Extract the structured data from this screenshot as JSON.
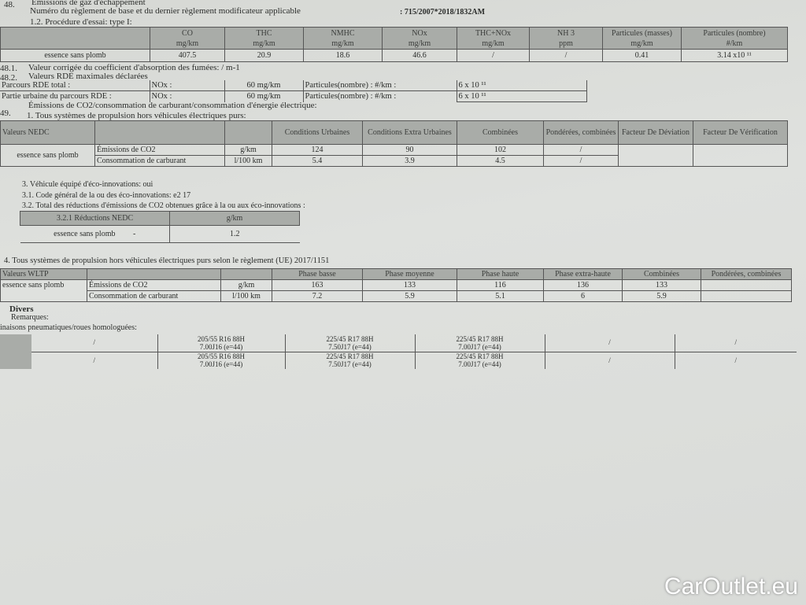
{
  "header": {
    "s48": "48.",
    "s48_title": "Émissions de gaz d'échappement",
    "reg_label": "Numéro du règlement de base et du dernier règlement modificateur applicable",
    "reg_value": ": 715/2007*2018/1832AM",
    "proc": "1.2. Procédure d'essai: type I:"
  },
  "emissions": {
    "headers": [
      [
        "CO",
        "mg/km"
      ],
      [
        "THC",
        "mg/km"
      ],
      [
        "NMHC",
        "mg/km"
      ],
      [
        "NOx",
        "mg/km"
      ],
      [
        "THC+NOx",
        "mg/km"
      ],
      [
        "NH 3",
        "ppm"
      ],
      [
        "Particules (masses)",
        "mg/km"
      ],
      [
        "Particules (nombre)",
        "#/km"
      ]
    ],
    "fuel": "essence sans plomb",
    "values": [
      "407.5",
      "20.9",
      "18.6",
      "46.6",
      "/",
      "/",
      "0.41",
      "3.14 x10 ¹¹"
    ]
  },
  "s48_1": {
    "num": "48.1.",
    "text": "Valeur corrigée du coefficient d'absorption des fumées: / m-1"
  },
  "s48_2": {
    "num": "48.2.",
    "text": "Valeurs RDE maximales déclarées",
    "rows": [
      {
        "label": "Parcours RDE total :",
        "nox": "NOx :",
        "nox_val": "60 mg/km",
        "pn": "Particules(nombre) : #/km :",
        "pn_val": "6 x 10 ¹¹"
      },
      {
        "label": "Partie urbaine du parcours RDE   :",
        "nox": "NOx :",
        "nox_val": "60 mg/km",
        "pn": "Particules(nombre) : #/km :",
        "pn_val": "6 x 10 ¹¹"
      }
    ]
  },
  "s49": {
    "num": "49.",
    "text": "Émissions de CO2/consommation de carburant/consommation d'énergie électrique:",
    "sub1": "1. Tous systèmes de propulsion hors véhicules électriques purs:"
  },
  "nedc": {
    "title": "Valeurs NEDC",
    "headers": [
      "Conditions Urbaines",
      "Conditions Extra Urbaines",
      "Combinées",
      "Pondérées, combinées",
      "Facteur De Déviation",
      "Facteur De Vérification"
    ],
    "fuel": "essence sans plomb",
    "rows": [
      {
        "label": "Émissions de CO2",
        "unit": "g/km",
        "values": [
          "124",
          "90",
          "102",
          "/"
        ]
      },
      {
        "label": "Consommation de carburant",
        "unit": "l/100 km",
        "values": [
          "5.4",
          "3.9",
          "4.5",
          "/"
        ]
      }
    ]
  },
  "eco": {
    "l3": "3. Véhicule équipé d'éco-innovations: oui",
    "l31": "3.1. Code général de la ou des éco-innovations: e2 17",
    "l32": "3.2. Total des réductions d'émissions de CO2 obtenues grâce à la ou aux éco-innovations :",
    "table_head": "3.2.1 Réductions NEDC",
    "table_unit": "g/km",
    "fuel": "essence sans plomb",
    "dash": "-",
    "value": "1.2"
  },
  "wltp": {
    "intro": "4. Tous systèmes de propulsion hors véhicules électriques purs selon le règlement (UE) 2017/1151",
    "title": "Valeurs WLTP",
    "headers": [
      "Phase basse",
      "Phase moyenne",
      "Phase haute",
      "Phase extra-haute",
      "Combinées",
      "Pondérées, combinées"
    ],
    "fuel": "essence sans plomb",
    "rows": [
      {
        "label": "Émissions de CO2",
        "unit": "g/km",
        "values": [
          "163",
          "133",
          "116",
          "136",
          "133",
          ""
        ]
      },
      {
        "label": "Consommation de carburant",
        "unit": "l/100 km",
        "values": [
          "7.2",
          "5.9",
          "5.1",
          "6",
          "5.9",
          ""
        ]
      }
    ]
  },
  "divers": {
    "title": "Divers",
    "remarks": "Remarques:",
    "tyres_label": "inaisons pneumatiques/roues homologuées:",
    "tyres": [
      [
        "/",
        "205/55 R16 88H",
        "7.00J16 (e=44)",
        "225/45 R17 88H",
        "7.50J17 (e=44)",
        "225/45 R17 88H",
        "7.00J17 (e=44)",
        "/",
        "/"
      ],
      [
        "/",
        "205/55 R16 88H",
        "7.00J16 (e=44)",
        "225/45 R17 88H",
        "7.50J17 (e=44)",
        "225/45 R17 88H",
        "7.00J17 (e=44)",
        "/",
        "/"
      ]
    ]
  },
  "watermark": "CarOutlet.eu"
}
